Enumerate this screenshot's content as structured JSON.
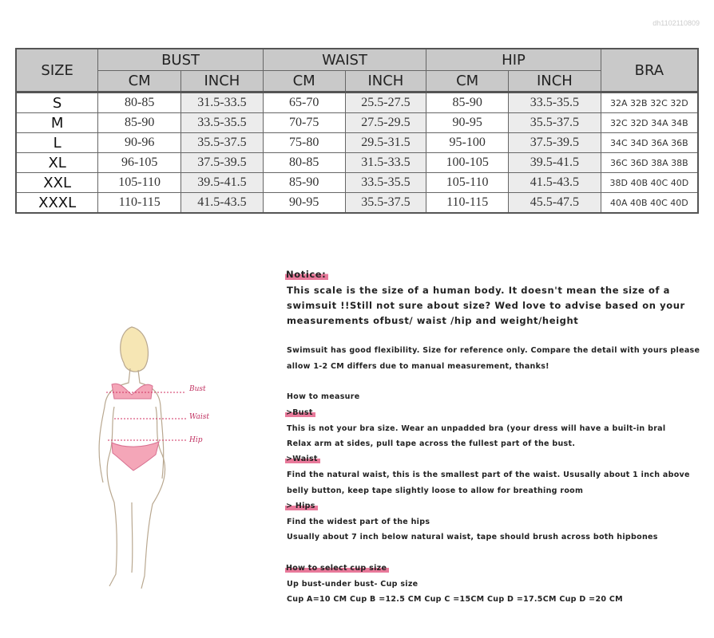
{
  "watermark": "dh1102110809",
  "table": {
    "headers": {
      "size": "SIZE",
      "bust": "BUST",
      "waist": "WAIST",
      "hip": "HIP",
      "bra": "BRA",
      "cm": "CM",
      "inch": "INCH"
    },
    "rows": [
      {
        "size": "S",
        "bust_cm": "80-85",
        "bust_in": "31.5-33.5",
        "waist_cm": "65-70",
        "waist_in": "25.5-27.5",
        "hip_cm": "85-90",
        "hip_in": "33.5-35.5",
        "bra": "32A 32B 32C 32D"
      },
      {
        "size": "M",
        "bust_cm": "85-90",
        "bust_in": "33.5-35.5",
        "waist_cm": "70-75",
        "waist_in": "27.5-29.5",
        "hip_cm": "90-95",
        "hip_in": "35.5-37.5",
        "bra": "32C 32D 34A 34B"
      },
      {
        "size": "L",
        "bust_cm": "90-96",
        "bust_in": "35.5-37.5",
        "waist_cm": "75-80",
        "waist_in": "29.5-31.5",
        "hip_cm": "95-100",
        "hip_in": "37.5-39.5",
        "bra": "34C 34D 36A 36B"
      },
      {
        "size": "XL",
        "bust_cm": "96-105",
        "bust_in": "37.5-39.5",
        "waist_cm": "80-85",
        "waist_in": "31.5-33.5",
        "hip_cm": "100-105",
        "hip_in": "39.5-41.5",
        "bra": "36C 36D 38A 38B"
      },
      {
        "size": "XXL",
        "bust_cm": "105-110",
        "bust_in": "39.5-41.5",
        "waist_cm": "85-90",
        "waist_in": "33.5-35.5",
        "hip_cm": "105-110",
        "hip_in": "41.5-43.5",
        "bra": "38D 40B 40C 40D"
      },
      {
        "size": "XXXL",
        "bust_cm": "110-115",
        "bust_in": "41.5-43.5",
        "waist_cm": "90-95",
        "waist_in": "35.5-37.5",
        "hip_cm": "110-115",
        "hip_in": "45.5-47.5",
        "bra": "40A 40B 40C 40D"
      }
    ]
  },
  "figure": {
    "bust_label": "Bust",
    "waist_label": "Waist",
    "hip_label": "Hip",
    "accent": "#e8799a"
  },
  "notes": {
    "notice_title": "Notice:",
    "notice_lines": [
      "This scale is the size of a human body. It doesn't mean the size of a",
      "swimsuit !!Still not sure about size? Wed love to advise based on your",
      "measurements ofbust/ waist /hip and weight/height"
    ],
    "flex_lines": [
      "Swimsuit has good flexibility. Size for reference only. Compare the detail with yours please",
      "allow 1-2 CM differs due to manual measurement, thanks!"
    ],
    "how_to_measure": "How to measure",
    "bust_title": ">Bust",
    "bust_lines": [
      "This is not your bra size. Wear an unpadded bra (your dress will have a built-in bral",
      "Relax arm at sides, pull tape across the fullest part of the bust."
    ],
    "waist_title": ">Waist",
    "waist_lines": [
      "Find the natural waist, this is the smallest part of the waist. Ususally about 1 inch above",
      "belly button, keep tape slightly loose to allow for breathing room"
    ],
    "hips_title": "> Hips",
    "hips_lines": [
      "Find the widest part of the hips",
      "Usually about 7 inch below natural waist, tape should brush across both hipbones"
    ],
    "cup_title": "How to select cup size",
    "cup_lines": [
      "Up bust-under bust- Cup size",
      "Cup A=10 CM Cup B =12.5 CM Cup C =15CM Cup D =17.5CM Cup D =20 CM"
    ]
  }
}
